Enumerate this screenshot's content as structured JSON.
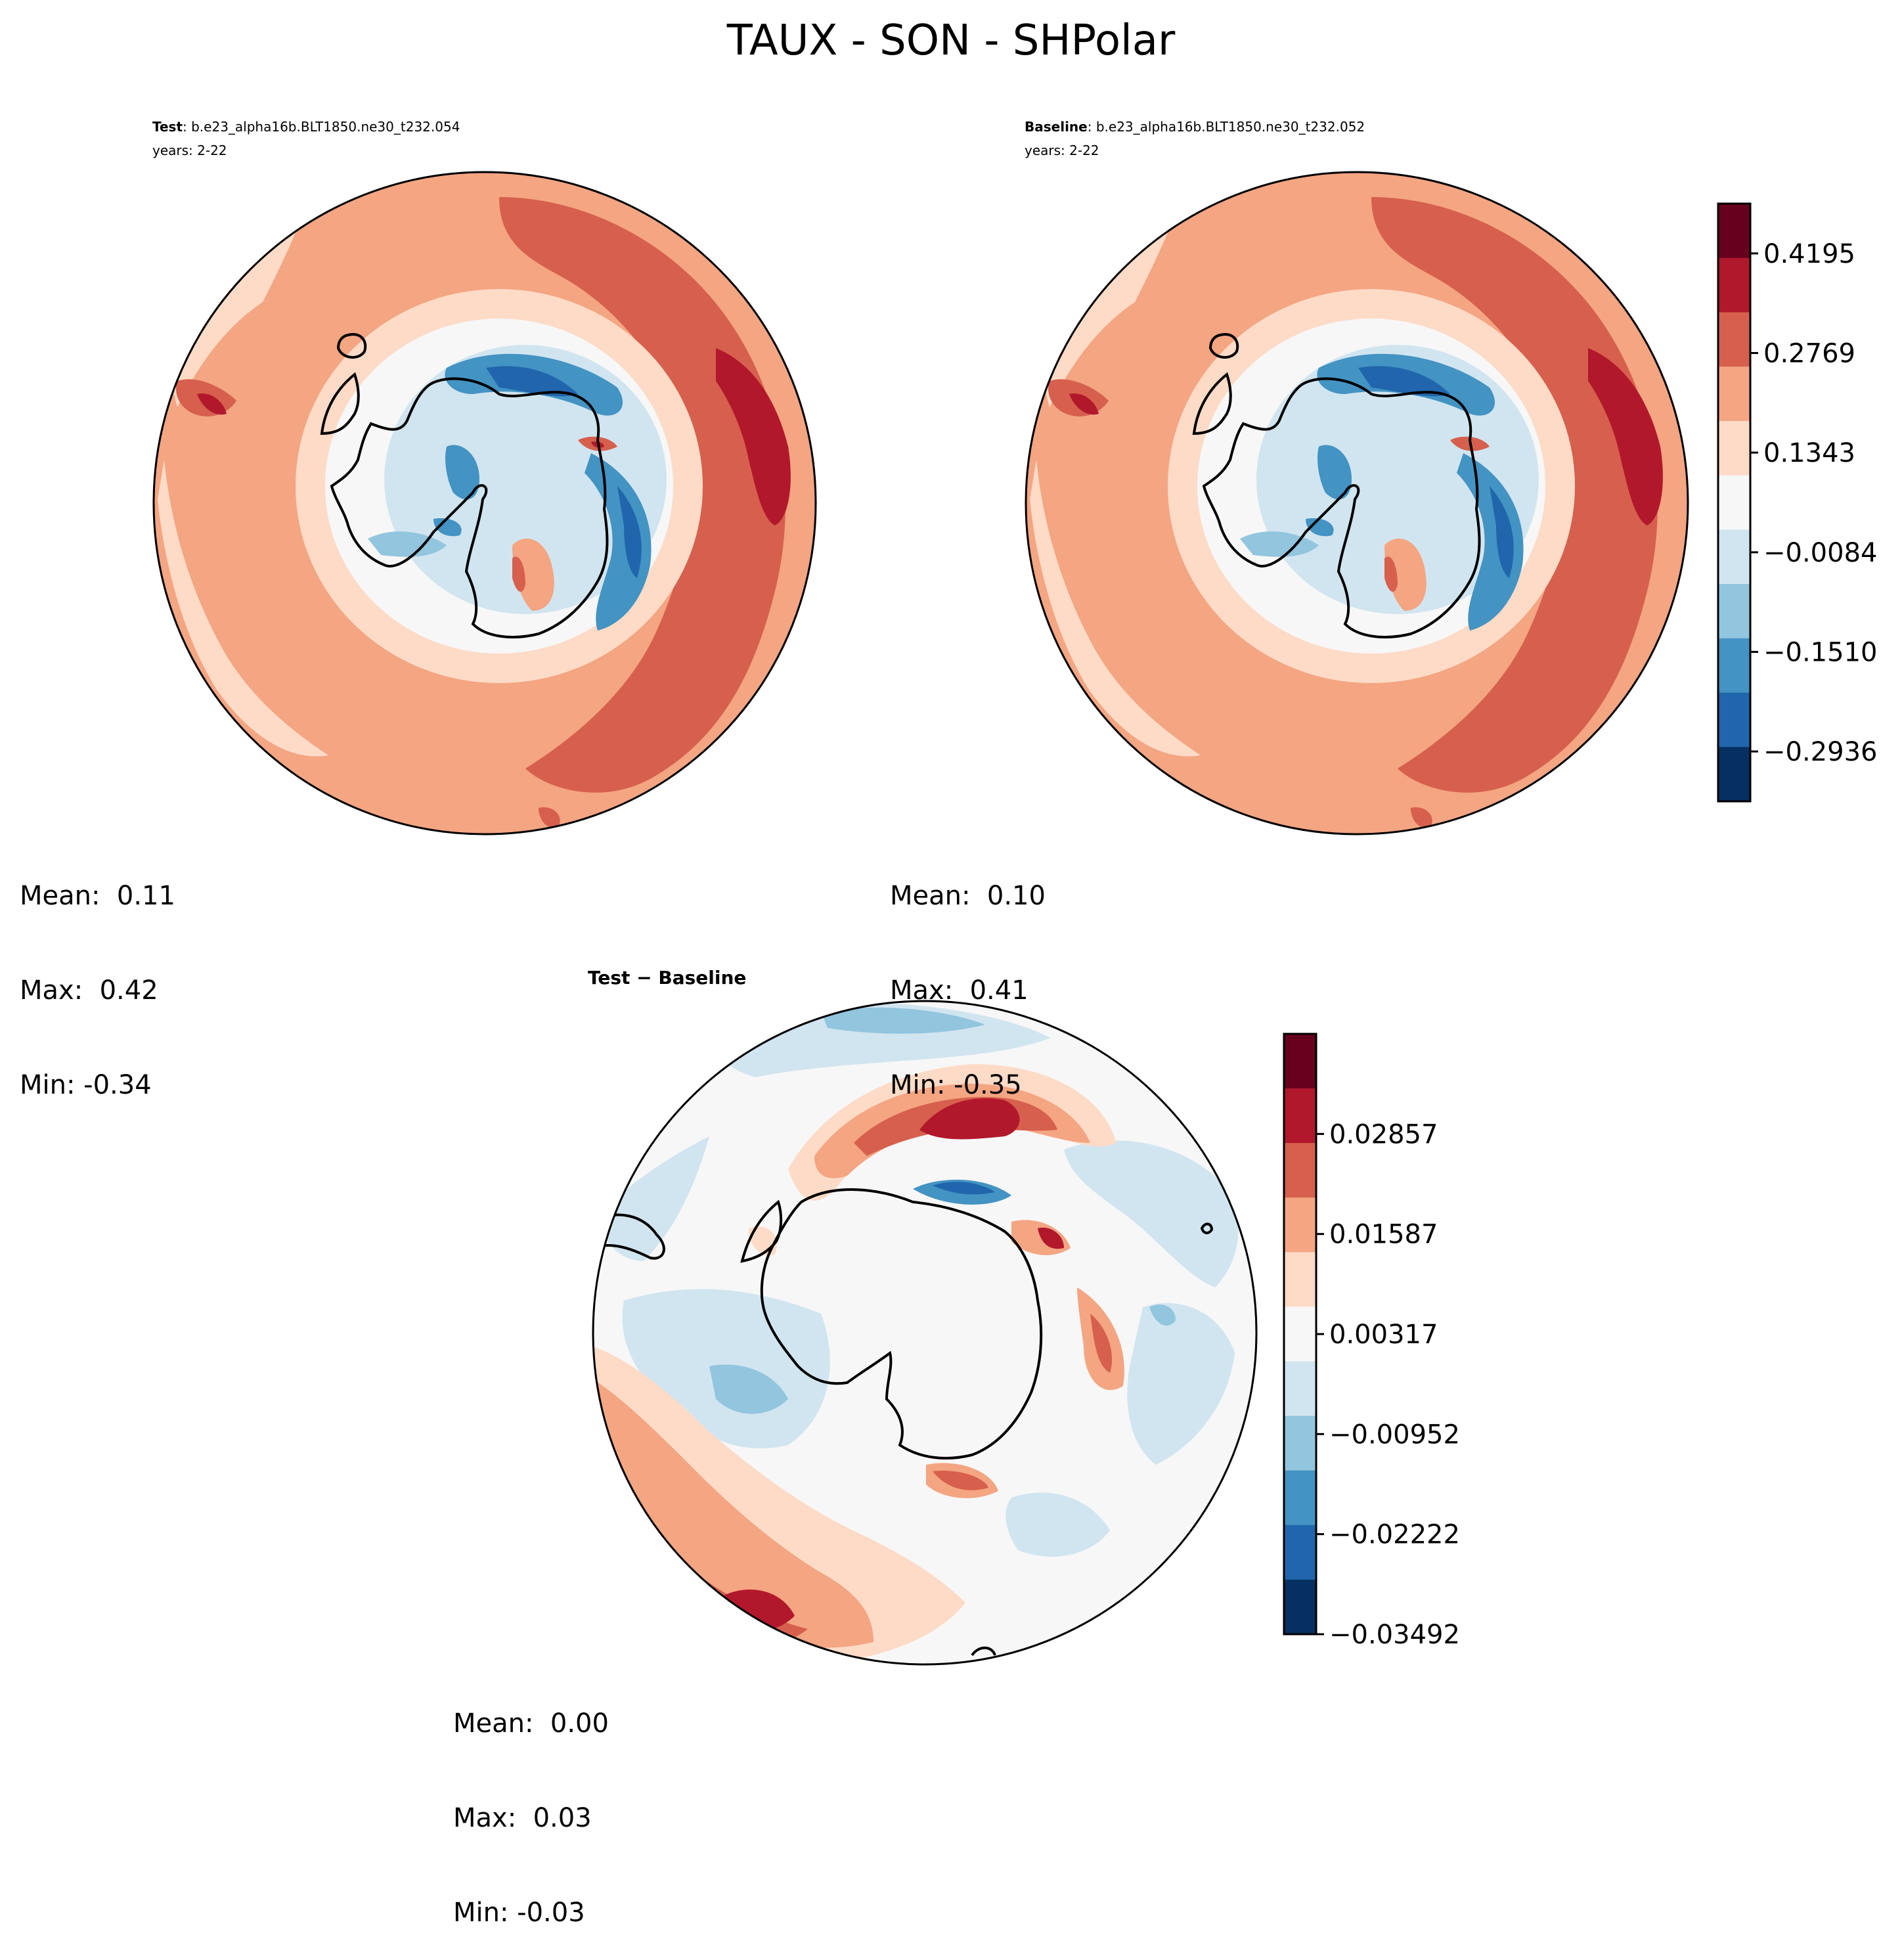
{
  "chart_data": {
    "type": "heatmap",
    "projection": "south-polar-stereographic",
    "title": "TAUX - SON - SHPolar",
    "panels": [
      {
        "id": "test",
        "label_bold": "Test",
        "label_rest": ": b.e23_alpha16b.BLT1850.ne30_t232.054",
        "years": "years: 2-22",
        "stats": {
          "mean": "Mean:  0.11",
          "max": "Max:  0.42",
          "min": "Min: -0.34"
        },
        "colorbar": "main"
      },
      {
        "id": "baseline",
        "label_bold": "Baseline",
        "label_rest": ": b.e23_alpha16b.BLT1850.ne30_t232.052",
        "years": "years: 2-22",
        "stats": {
          "mean": "Mean:  0.10",
          "max": "Max:  0.41",
          "min": "Min: -0.35"
        },
        "colorbar": "main"
      },
      {
        "id": "diff",
        "label_bold": "Test − Baseline",
        "label_rest": "",
        "years": "",
        "stats": {
          "mean": "Mean:  0.00",
          "max": "Max:  0.03",
          "min": "Min: -0.03"
        },
        "colorbar": "diff"
      }
    ],
    "colorbars": {
      "main": {
        "ticks": [
          "0.4195",
          "0.2769",
          "0.1343",
          "−0.0084",
          "−0.1510",
          "−0.2936"
        ],
        "tick_values": [
          0.4195,
          0.2769,
          0.1343,
          -0.0084,
          -0.151,
          -0.2936
        ],
        "range": [
          -0.365,
          0.4908
        ],
        "colors_top_to_bottom": [
          "#67001f",
          "#b2182b",
          "#d6604d",
          "#f4a582",
          "#fddbc7",
          "#f7f7f7",
          "#d1e5f0",
          "#92c5de",
          "#4393c3",
          "#2166ac",
          "#053061"
        ]
      },
      "diff": {
        "ticks": [
          "0.02857",
          "0.01587",
          "0.00317",
          "−0.00952",
          "−0.02222",
          "−0.03492"
        ],
        "tick_values": [
          0.02857,
          0.01587,
          0.00317,
          -0.00952,
          -0.02222,
          -0.03492
        ],
        "range": [
          -0.03492,
          0.04127
        ],
        "colors_top_to_bottom": [
          "#67001f",
          "#b2182b",
          "#d6604d",
          "#f4a582",
          "#fddbc7",
          "#f7f7f7",
          "#d1e5f0",
          "#92c5de",
          "#4393c3",
          "#2166ac",
          "#053061"
        ]
      }
    }
  }
}
